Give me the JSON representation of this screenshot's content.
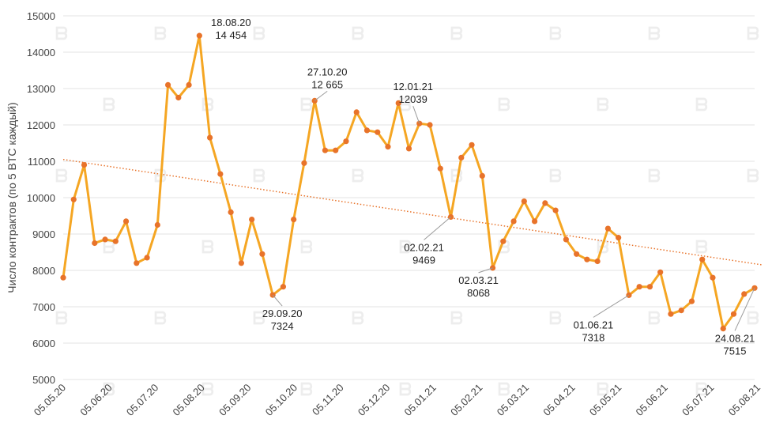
{
  "chart_data": {
    "type": "line",
    "title": "",
    "xlabel": "",
    "ylabel": "Число контрактов (по 5 BTC каждый)",
    "ylim": [
      5000,
      15000
    ],
    "yticks": [
      5000,
      6000,
      7000,
      8000,
      9000,
      10000,
      11000,
      12000,
      13000,
      14000,
      15000
    ],
    "ytick_labels": [
      "5000",
      "6000",
      "7000",
      "8000",
      "9000",
      "10000",
      "11000",
      "12000",
      "13000",
      "14000",
      "15000"
    ],
    "xticks": [
      "05.05.20",
      "05.06.20",
      "05.07.20",
      "05.08.20",
      "05.09.20",
      "05.10.20",
      "05.11.20",
      "05.12.20",
      "05.01.21",
      "05.02.21",
      "05.03.21",
      "05.04.21",
      "05.05.21",
      "05.06.21",
      "05.07.21",
      "05.08.21"
    ],
    "series": [
      {
        "name": "Число контрактов",
        "color": "#F5A623",
        "marker_color": "#E8732A",
        "values": [
          7800,
          9950,
          10900,
          8750,
          8850,
          8800,
          9350,
          8200,
          8350,
          9250,
          13100,
          12750,
          13100,
          14454,
          11650,
          10650,
          9600,
          8200,
          9400,
          8450,
          7324,
          7550,
          9400,
          10950,
          12665,
          11300,
          11300,
          11550,
          12350,
          11850,
          11800,
          11400,
          12600,
          11350,
          12039,
          12000,
          10800,
          9469,
          11100,
          11450,
          10600,
          8068,
          8800,
          9350,
          9900,
          9350,
          9850,
          9650,
          8850,
          8450,
          8300,
          8250,
          9150,
          8900,
          7318,
          7550,
          7550,
          7950,
          6800,
          6900,
          7150,
          8300,
          7800,
          6400,
          6800,
          7350,
          7515
        ]
      }
    ],
    "trendline": {
      "start": 11050,
      "end": 8150,
      "color": "#E8732A",
      "style": "dotted"
    },
    "annotations": [
      {
        "date": "18.08.20",
        "value": "14 454",
        "index": 13
      },
      {
        "date": "29.09.20",
        "value": "7324",
        "index": 20
      },
      {
        "date": "27.10.20",
        "value": "12 665",
        "index": 24
      },
      {
        "date": "12.01.21",
        "value": "12039",
        "index": 34
      },
      {
        "date": "02.02.21",
        "value": "9469",
        "index": 37
      },
      {
        "date": "02.03.21",
        "value": "8068",
        "index": 41
      },
      {
        "date": "01.06.21",
        "value": "7318",
        "index": 54
      },
      {
        "date": "24.08.21",
        "value": "7515",
        "index": 66
      }
    ]
  }
}
